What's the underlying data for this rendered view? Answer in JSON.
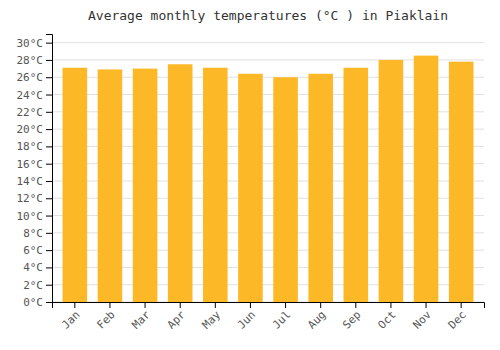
{
  "chart_data": {
    "type": "bar",
    "title": "Average monthly temperatures (°C ) in Piaklain",
    "categories": [
      "Jan",
      "Feb",
      "Mar",
      "Apr",
      "May",
      "Jun",
      "Jul",
      "Aug",
      "Sep",
      "Oct",
      "Nov",
      "Dec"
    ],
    "values": [
      27.1,
      26.9,
      27.0,
      27.5,
      27.1,
      26.4,
      26.0,
      26.4,
      27.1,
      28.0,
      28.5,
      27.8
    ],
    "color": "#FDB827",
    "ylim": [
      0,
      31
    ],
    "yticks": [
      {
        "value": 0,
        "label": "0°C"
      },
      {
        "value": 2,
        "label": "2°C"
      },
      {
        "value": 4,
        "label": "4°C"
      },
      {
        "value": 6,
        "label": "6°C"
      },
      {
        "value": 8,
        "label": "8°C"
      },
      {
        "value": 10,
        "label": "10°C"
      },
      {
        "value": 12,
        "label": "12°C"
      },
      {
        "value": 14,
        "label": "14°C"
      },
      {
        "value": 16,
        "label": "16°C"
      },
      {
        "value": 18,
        "label": "18°C"
      },
      {
        "value": 20,
        "label": "20°C"
      },
      {
        "value": 22,
        "label": "22°C"
      },
      {
        "value": 24,
        "label": "24°C"
      },
      {
        "value": 26,
        "label": "26°C"
      },
      {
        "value": 28,
        "label": "28°C"
      },
      {
        "value": 30,
        "label": "30°C"
      }
    ],
    "grid": true
  }
}
